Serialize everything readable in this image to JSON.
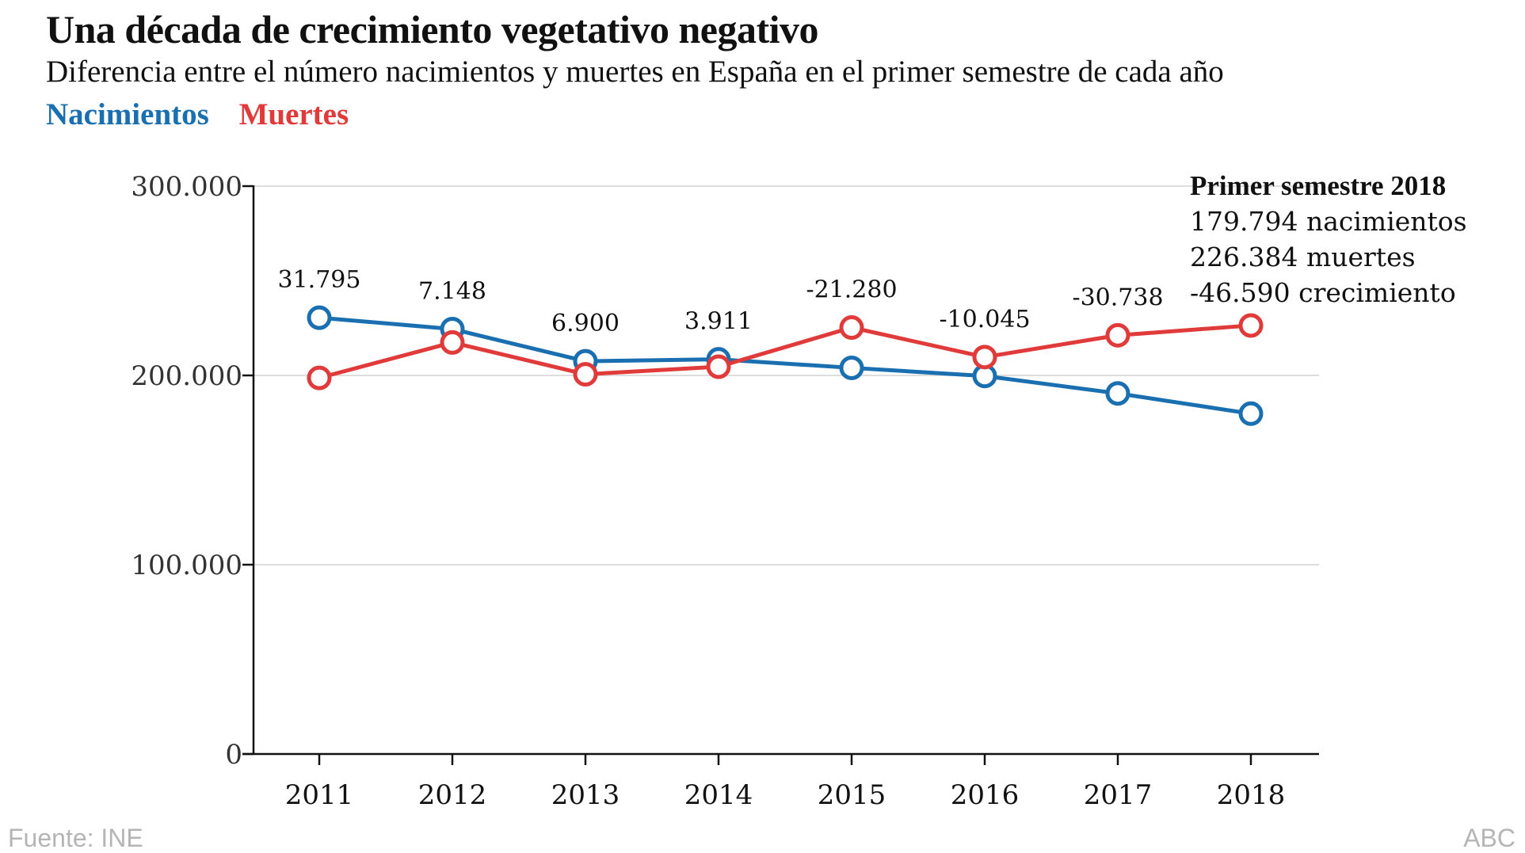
{
  "title": "Una década de crecimiento vegetativo negativo",
  "subtitle": "Diferencia entre el número nacimientos y muertes en España en el primer semestre de cada año",
  "legend": {
    "births": "Nacimientos",
    "deaths": "Muertes"
  },
  "colors": {
    "births": "#1a6fb0",
    "deaths": "#e03a3a",
    "grid": "#dddddd",
    "axis": "#111111"
  },
  "annotation": {
    "heading": "Primer semestre 2018",
    "line1": "179.794 nacimientos",
    "line2": "226.384 muertes",
    "line3": "-46.590 crecimiento"
  },
  "footer": {
    "source": "Fuente: INE",
    "credit": "ABC"
  },
  "chart_data": {
    "type": "line",
    "title": "Una década de crecimiento vegetativo negativo",
    "xlabel": "",
    "ylabel": "",
    "ylim": [
      0,
      300000
    ],
    "yticks": [
      0,
      100000,
      200000,
      300000
    ],
    "ytick_labels": [
      "0",
      "100.000",
      "200.000",
      "300.000"
    ],
    "categories": [
      "2011",
      "2012",
      "2013",
      "2014",
      "2015",
      "2016",
      "2017",
      "2018"
    ],
    "series": [
      {
        "name": "Nacimientos",
        "values": [
          230500,
          224500,
          207500,
          208500,
          204000,
          199700,
          190500,
          179794
        ]
      },
      {
        "name": "Muertes",
        "values": [
          198700,
          217400,
          200600,
          204600,
          225300,
          209700,
          221200,
          226384
        ]
      }
    ],
    "difference_labels": [
      "31.795",
      "7.148",
      "6.900",
      "3.911",
      "-21.280",
      "-10.045",
      "-30.738",
      ""
    ]
  }
}
